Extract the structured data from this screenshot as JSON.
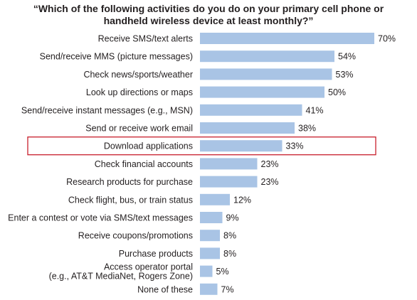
{
  "title": {
    "line1": "“Which of the following activities do you do on your primary cell phone or",
    "line2": "handheld wireless device at least monthly?”"
  },
  "colors": {
    "bar": "#a9c4e5",
    "highlight": "#c8202d",
    "text": "#231f20"
  },
  "chart_data": {
    "type": "bar",
    "orientation": "horizontal",
    "title": "“Which of the following activities do you do on your primary cell phone or handheld wireless device at least monthly?”",
    "categories": [
      [
        "Receive SMS/text alerts"
      ],
      [
        "Send/receive MMS (picture messages)"
      ],
      [
        "Check news/sports/weather"
      ],
      [
        "Look up directions or maps"
      ],
      [
        "Send/receive instant messages (e.g., MSN)"
      ],
      [
        "Send or receive work email"
      ],
      [
        "Download applications"
      ],
      [
        "Check financial accounts"
      ],
      [
        "Research products for purchase"
      ],
      [
        "Check flight, bus, or train status"
      ],
      [
        "Enter a contest or vote via SMS/text messages"
      ],
      [
        "Receive coupons/promotions"
      ],
      [
        "Purchase products"
      ],
      [
        "Access operator portal",
        "(e.g., AT&T MediaNet, Rogers Zone)"
      ],
      [
        "None of these"
      ]
    ],
    "values": [
      70,
      54,
      53,
      50,
      41,
      38,
      33,
      23,
      23,
      12,
      9,
      8,
      8,
      5,
      7
    ],
    "value_labels": [
      "70%",
      "54%",
      "53%",
      "50%",
      "41%",
      "38%",
      "33%",
      "23%",
      "23%",
      "12%",
      "9%",
      "8%",
      "8%",
      "5%",
      "7%"
    ],
    "highlighted_index": 6,
    "xlim": [
      0,
      70
    ],
    "grid": false,
    "legend": "none"
  }
}
